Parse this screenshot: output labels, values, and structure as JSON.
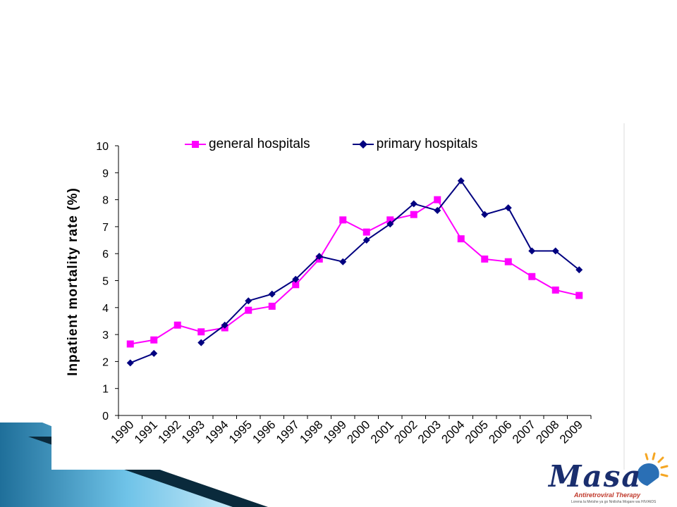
{
  "slide": {
    "logo": {
      "name": "Masa",
      "subtitle": "Antiretroviral Therapy",
      "tagline": "Lorena la Metshe ya go Nnilisha Mogare wa HIV/AIDS"
    }
  },
  "colors": {
    "general": "#ff00ff",
    "primary": "#000080",
    "banner_dark": "#0a2a3c",
    "banner_light": "#6fc3e8",
    "logo_blue": "#1a2e6e",
    "logo_red": "#c0392b"
  },
  "chart_data": {
    "type": "line",
    "title": "",
    "xlabel": "",
    "ylabel": "Inpatient mortality rate (%)",
    "ylim": [
      0,
      10
    ],
    "yticks": [
      "0",
      "1",
      "2",
      "3",
      "4",
      "5",
      "6",
      "7",
      "8",
      "9",
      "10"
    ],
    "grid": false,
    "legend_position": "top",
    "categories": [
      "1990",
      "1991",
      "1992",
      "1993",
      "1994",
      "1995",
      "1996",
      "1997",
      "1998",
      "1999",
      "2000",
      "2001",
      "2002",
      "2003",
      "2004",
      "2005",
      "2006",
      "2007",
      "2008",
      "2009"
    ],
    "series": [
      {
        "name": "general hospitals",
        "marker": "square",
        "values": [
          2.65,
          2.8,
          3.35,
          3.1,
          3.25,
          3.9,
          4.05,
          4.85,
          5.8,
          7.25,
          6.8,
          7.25,
          7.45,
          8.0,
          6.55,
          5.8,
          5.7,
          5.15,
          4.65,
          4.45
        ]
      },
      {
        "name": "primary hospitals",
        "marker": "diamond",
        "values": [
          1.95,
          2.3,
          null,
          2.7,
          3.35,
          4.25,
          4.5,
          5.05,
          5.9,
          5.7,
          6.5,
          7.1,
          7.85,
          7.6,
          8.7,
          7.45,
          7.7,
          6.1,
          6.1,
          5.4
        ]
      }
    ]
  }
}
